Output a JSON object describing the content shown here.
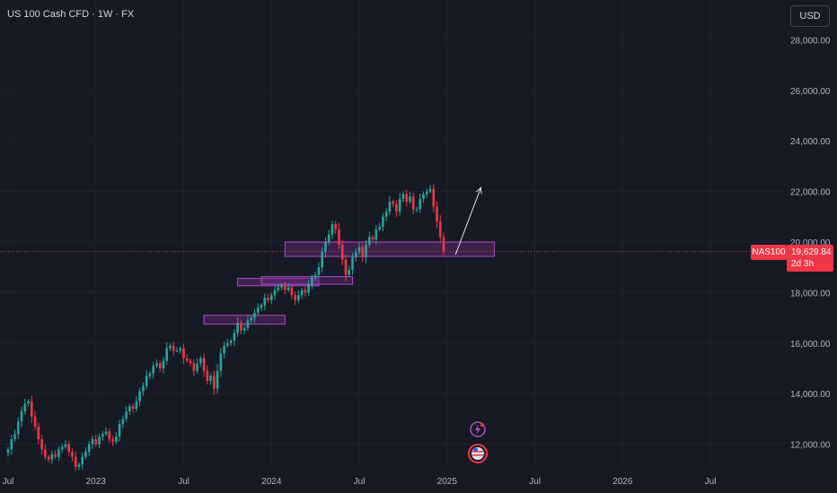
{
  "header": {
    "title": "US 100 Cash CFD · 1W · FX",
    "currency_button": "USD"
  },
  "price_tag": {
    "symbol": "NAS100",
    "price": "19,629.84",
    "countdown": "2d 3h"
  },
  "colors": {
    "background": "#161a25",
    "up": "#26a69a",
    "down": "#f23645",
    "zone_fill": "#6a2a7e",
    "zone_stroke": "#b44cc8"
  },
  "chart_data": {
    "type": "candlestick",
    "timeframe": "weekly",
    "yticks": [
      12000,
      14000,
      16000,
      18000,
      20000,
      22000,
      24000,
      26000,
      28000
    ],
    "ytick_labels": [
      "12,000.00",
      "14,000.00",
      "16,000.00",
      "18,000.00",
      "20,000.00",
      "22,000.00",
      "24,000.00",
      "26,000.00",
      "28,000.00"
    ],
    "xticks": [
      {
        "label": "Jul",
        "week": 0
      },
      {
        "label": "2023",
        "week": 26
      },
      {
        "label": "Jul",
        "week": 52
      },
      {
        "label": "2024",
        "week": 78
      },
      {
        "label": "Jul",
        "week": 104
      },
      {
        "label": "2025",
        "week": 130
      },
      {
        "label": "Jul",
        "week": 156
      },
      {
        "label": "2026",
        "week": 182
      },
      {
        "label": "Jul",
        "week": 208
      }
    ],
    "current_price": 19629.84,
    "closes": [
      11800,
      12200,
      12400,
      12900,
      13300,
      13600,
      13700,
      13100,
      12700,
      12200,
      11800,
      11500,
      11400,
      11600,
      11500,
      11800,
      11900,
      12000,
      11700,
      11500,
      11100,
      11200,
      11500,
      11700,
      12000,
      12200,
      12000,
      12300,
      12400,
      12500,
      12200,
      12100,
      12300,
      12800,
      13000,
      13300,
      13500,
      13400,
      13700,
      14100,
      14300,
      14700,
      14800,
      15100,
      15200,
      15000,
      15300,
      15800,
      15900,
      15700,
      15700,
      15800,
      15400,
      15300,
      15200,
      14900,
      15200,
      15400,
      14900,
      14500,
      14700,
      14200,
      14900,
      15600,
      15900,
      16000,
      16100,
      16400,
      16800,
      16500,
      16600,
      16900,
      17000,
      17200,
      17400,
      17500,
      17800,
      17700,
      17900,
      18100,
      18200,
      18300,
      18100,
      18200,
      17900,
      17700,
      17900,
      18100,
      18000,
      18300,
      18600,
      18700,
      19000,
      19600,
      20000,
      20300,
      20700,
      20500,
      19900,
      19300,
      18700,
      18900,
      19400,
      19600,
      19800,
      19400,
      19900,
      20200,
      20100,
      20500,
      20600,
      21000,
      21200,
      21600,
      21500,
      21200,
      21700,
      21900,
      21600,
      21800,
      21300,
      21300,
      21700,
      21900,
      22000,
      22100,
      21400,
      20800,
      20200,
      19630
    ],
    "zones": [
      {
        "from_week": 58,
        "to_week": 82,
        "low": 16750,
        "high": 17100
      },
      {
        "from_week": 68,
        "to_week": 92,
        "low": 18270,
        "high": 18560
      },
      {
        "from_week": 75,
        "to_week": 102,
        "low": 18330,
        "high": 18630
      },
      {
        "from_week": 82,
        "to_week": 144,
        "low": 19430,
        "high": 20000
      }
    ],
    "arrow": {
      "from_week": 132.5,
      "from_price": 19500,
      "to_week": 140,
      "to_price": 22150
    }
  }
}
